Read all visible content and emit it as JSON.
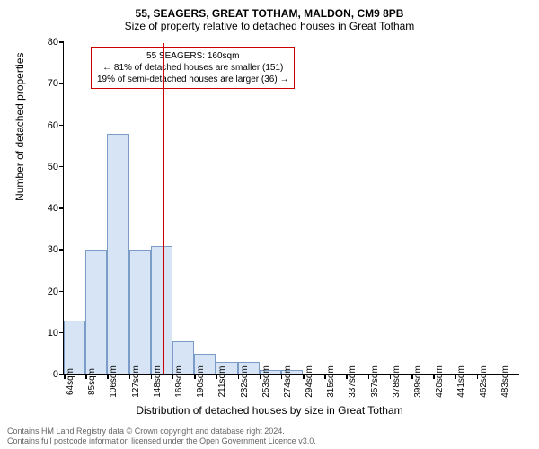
{
  "chart": {
    "type": "histogram",
    "title_line1": "55, SEAGERS, GREAT TOTHAM, MALDON, CM9 8PB",
    "title_line2": "Size of property relative to detached houses in Great Totham",
    "title_fontsize": 12,
    "ylabel": "Number of detached properties",
    "xlabel": "Distribution of detached houses by size in Great Totham",
    "label_fontsize": 12,
    "background_color": "#ffffff",
    "bar_fill": "#d6e4f5",
    "bar_stroke": "#7a9cc6",
    "axis_color": "#000000",
    "ytick_values": [
      0,
      10,
      20,
      30,
      40,
      50,
      60,
      70,
      80
    ],
    "ylim": [
      0,
      80
    ],
    "xtick_labels": [
      "64sqm",
      "85sqm",
      "106sqm",
      "127sqm",
      "148sqm",
      "169sqm",
      "190sqm",
      "211sqm",
      "232sqm",
      "253sqm",
      "274sqm",
      "294sqm",
      "315sqm",
      "337sqm",
      "357sqm",
      "378sqm",
      "399sqm",
      "420sqm",
      "441sqm",
      "462sqm",
      "483sqm"
    ],
    "bar_values": [
      13,
      30,
      58,
      30,
      31,
      8,
      5,
      3,
      3,
      1,
      1,
      0,
      0,
      0,
      0,
      0,
      0,
      0,
      0,
      0,
      0
    ],
    "reference_line": {
      "color": "#cc0000",
      "position_index": 4.6,
      "value_sqm": 160
    },
    "annotation": {
      "line1": "55 SEAGERS: 160sqm",
      "line2": "← 81% of detached houses are smaller (151)",
      "line3": "19% of semi-detached houses are larger (36) →",
      "border_color": "#cc0000",
      "fontsize": 10
    }
  },
  "footer": {
    "line1": "Contains HM Land Registry data © Crown copyright and database right 2024.",
    "line2": "Contains full postcode information licensed under the Open Government Licence v3.0.",
    "color": "#666666",
    "fontsize": 9
  }
}
